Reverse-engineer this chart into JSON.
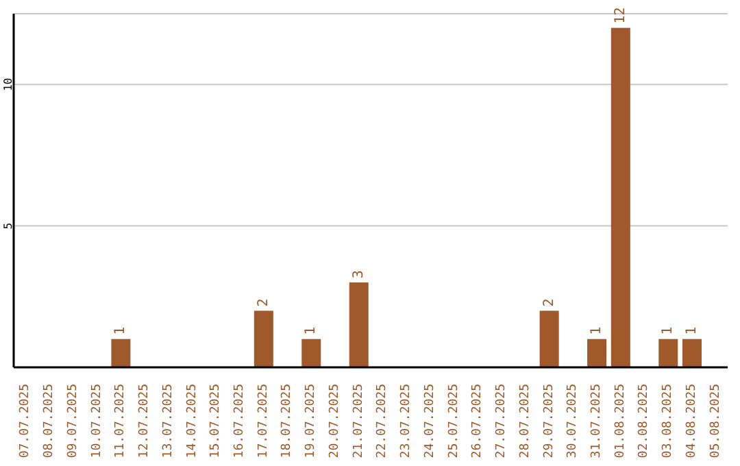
{
  "chart_data": {
    "type": "bar",
    "categories": [
      "07.07.2025",
      "08.07.2025",
      "09.07.2025",
      "10.07.2025",
      "11.07.2025",
      "12.07.2025",
      "13.07.2025",
      "14.07.2025",
      "15.07.2025",
      "16.07.2025",
      "17.07.2025",
      "18.07.2025",
      "19.07.2025",
      "20.07.2025",
      "21.07.2025",
      "22.07.2025",
      "23.07.2025",
      "24.07.2025",
      "25.07.2025",
      "26.07.2025",
      "27.07.2025",
      "28.07.2025",
      "29.07.2025",
      "30.07.2025",
      "31.07.2025",
      "01.08.2025",
      "02.08.2025",
      "03.08.2025",
      "04.08.2025",
      "05.08.2025"
    ],
    "values": [
      0,
      0,
      0,
      0,
      1,
      0,
      0,
      0,
      0,
      0,
      2,
      0,
      1,
      0,
      3,
      0,
      0,
      0,
      0,
      0,
      0,
      0,
      2,
      0,
      1,
      12,
      0,
      1,
      1,
      0
    ],
    "value_labels": [
      null,
      null,
      null,
      null,
      "1",
      null,
      null,
      null,
      null,
      null,
      "2",
      null,
      "1",
      null,
      "3",
      null,
      null,
      null,
      null,
      null,
      null,
      null,
      "2",
      null,
      "1",
      "12",
      null,
      "1",
      "1",
      null
    ],
    "color": "#a0592a",
    "ylim": [
      0,
      12.5
    ],
    "yticks": [
      5,
      10
    ],
    "grid": "y"
  }
}
